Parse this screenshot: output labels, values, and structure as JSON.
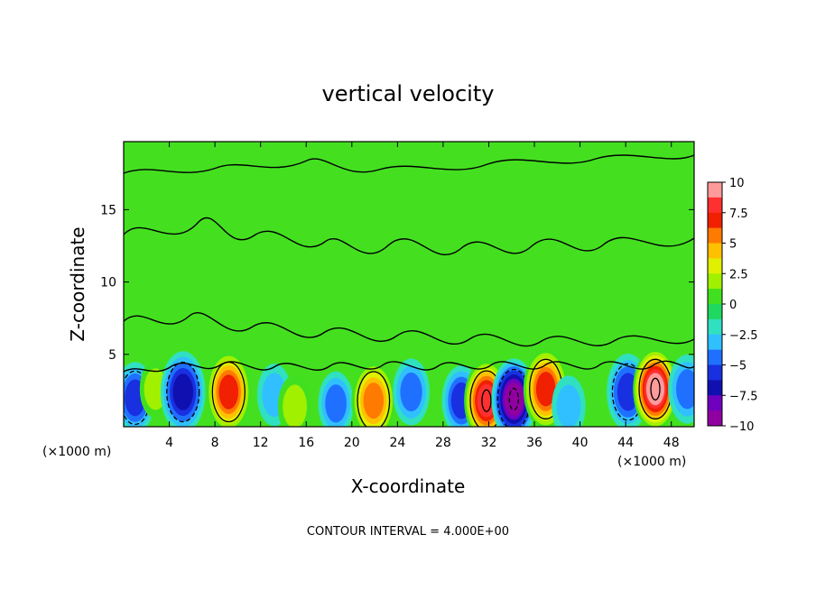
{
  "chart_data": {
    "type": "heatmap",
    "title": "vertical velocity",
    "xlabel": "X-coordinate",
    "ylabel": "Z-coordinate",
    "x_unit_left": "(×1000 m)",
    "x_unit_right": "(×1000 m)",
    "x_ticks": [
      "4",
      "8",
      "12",
      "16",
      "20",
      "24",
      "28",
      "32",
      "36",
      "40",
      "44",
      "48"
    ],
    "y_ticks": [
      "5",
      "10",
      "15"
    ],
    "xlim": [
      0,
      50
    ],
    "ylim": [
      0,
      19.7
    ],
    "colorbar": {
      "labels": [
        "10",
        "7.5",
        "5",
        "2.5",
        "0",
        "−2.5",
        "−5",
        "−7.5",
        "−10"
      ],
      "range": [
        -10,
        10
      ],
      "colors": [
        "#ff9a9a",
        "#ff3030",
        "#f02000",
        "#ff7a00",
        "#ffc000",
        "#e0f000",
        "#a0f000",
        "#40e020",
        "#20d860",
        "#30e0c0",
        "#30c0ff",
        "#2070ff",
        "#1830e0",
        "#1010b0",
        "#7000c0",
        "#9000a0"
      ]
    },
    "features": [
      {
        "x": 1.0,
        "z": 2.0,
        "w": -4
      },
      {
        "x": 2.8,
        "z": 2.6,
        "w": 1.8
      },
      {
        "x": 5.2,
        "z": 2.4,
        "w": -6
      },
      {
        "x": 9.2,
        "z": 2.4,
        "w": 6.5
      },
      {
        "x": 13.2,
        "z": 2.2,
        "w": -2.5
      },
      {
        "x": 15.0,
        "z": 1.4,
        "w": 2.4
      },
      {
        "x": 18.6,
        "z": 1.6,
        "w": -2.8
      },
      {
        "x": 21.9,
        "z": 1.8,
        "w": 5.2
      },
      {
        "x": 25.2,
        "z": 2.4,
        "w": -3.2
      },
      {
        "x": 29.6,
        "z": 1.8,
        "w": -3.8
      },
      {
        "x": 31.8,
        "z": 1.8,
        "w": 8.5
      },
      {
        "x": 34.2,
        "z": 1.9,
        "w": -8.2
      },
      {
        "x": 37.0,
        "z": 2.6,
        "w": 6.8
      },
      {
        "x": 39.0,
        "z": 1.4,
        "w": -2.4
      },
      {
        "x": 44.2,
        "z": 2.4,
        "w": -4.8
      },
      {
        "x": 46.6,
        "z": 2.6,
        "w": 9.2
      },
      {
        "x": 49.4,
        "z": 2.6,
        "w": -3.6
      }
    ],
    "contour_interval_text": "CONTOUR INTERVAL = 4.000E+00"
  }
}
